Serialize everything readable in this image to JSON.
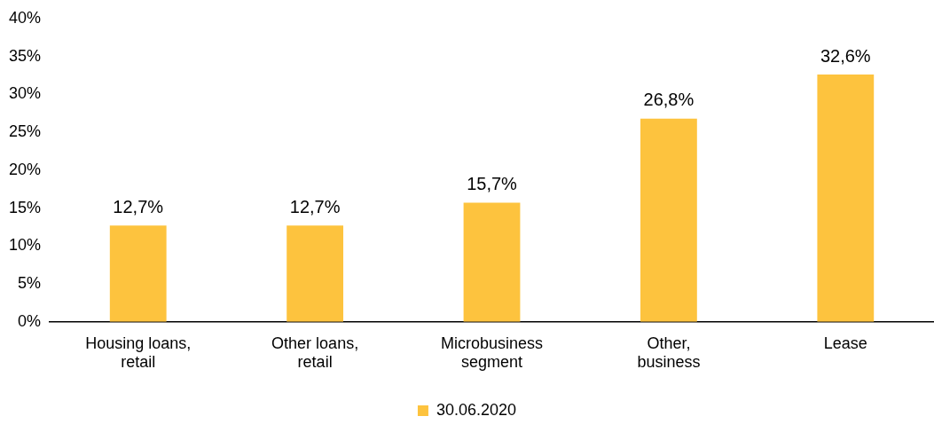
{
  "chart_data": {
    "type": "bar",
    "categories": [
      "Housing loans, retail",
      "Other loans, retail",
      "Microbusiness segment",
      "Other, business",
      "Lease"
    ],
    "series": [
      {
        "name": "30.06.2020",
        "color": "#fdc33e",
        "values": [
          12.7,
          12.7,
          15.7,
          26.8,
          32.6
        ],
        "value_labels": [
          "12,7%",
          "12,7%",
          "15,7%",
          "26,8%",
          "32,6%"
        ]
      }
    ],
    "ylim": [
      0,
      40
    ],
    "yticks": [
      {
        "value": 0,
        "label": "0%"
      },
      {
        "value": 5,
        "label": "5%"
      },
      {
        "value": 10,
        "label": "10%"
      },
      {
        "value": 15,
        "label": "15%"
      },
      {
        "value": 20,
        "label": "20%"
      },
      {
        "value": 25,
        "label": "25%"
      },
      {
        "value": 30,
        "label": "30%"
      },
      {
        "value": 35,
        "label": "35%"
      },
      {
        "value": 40,
        "label": "40%"
      }
    ],
    "grid": false,
    "legend": "bottom"
  }
}
